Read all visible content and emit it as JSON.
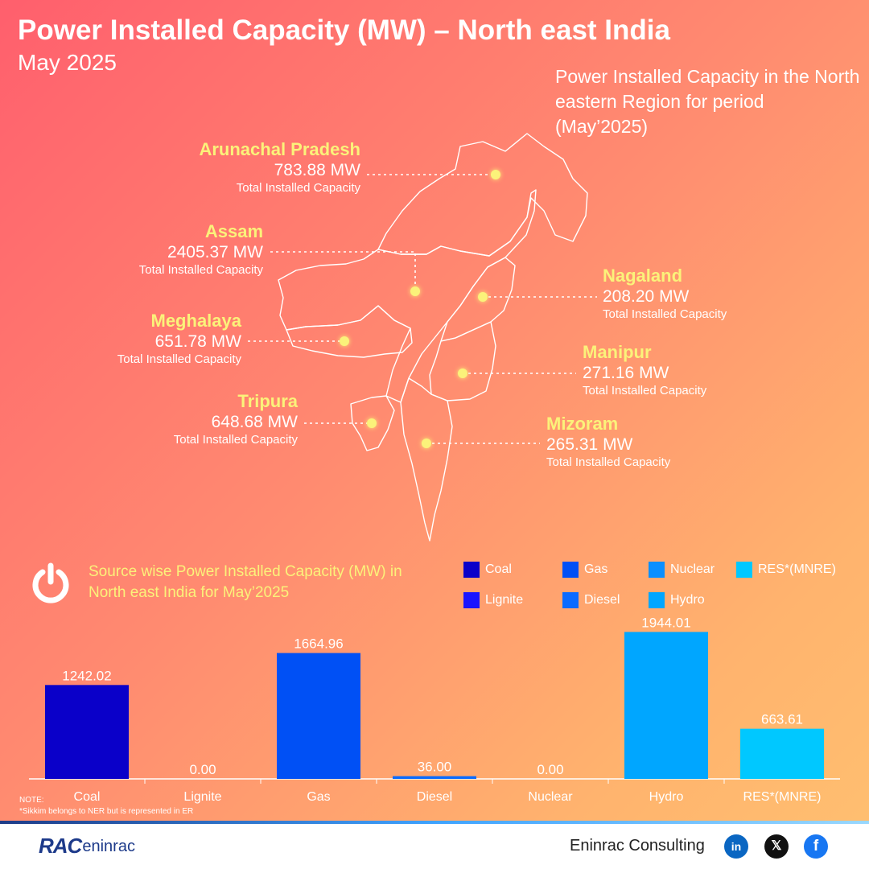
{
  "header": {
    "title": "Power Installed Capacity (MW) – North east India",
    "subtitle": "May 2025",
    "intro": "Power Installed Capacity in the North eastern Region for period (May’2025)"
  },
  "states": {
    "arunachal": {
      "name": "Arunachal Pradesh",
      "value": "783.88 MW",
      "caption": "Total Installed Capacity"
    },
    "assam": {
      "name": "Assam",
      "value": "2405.37 MW",
      "caption": "Total Installed Capacity"
    },
    "meghalaya": {
      "name": "Meghalaya",
      "value": "651.78 MW",
      "caption": "Total Installed Capacity"
    },
    "tripura": {
      "name": "Tripura",
      "value": "648.68 MW",
      "caption": "Total Installed Capacity"
    },
    "nagaland": {
      "name": "Nagaland",
      "value": "208.20 MW",
      "caption": "Total Installed Capacity"
    },
    "manipur": {
      "name": "Manipur",
      "value": "271.16 MW",
      "caption": "Total Installed Capacity"
    },
    "mizoram": {
      "name": "Mizoram",
      "value": "265.31 MW",
      "caption": "Total Installed Capacity"
    }
  },
  "source_section": {
    "title": "Source wise Power Installed Capacity (MW) in North east India for May’2025",
    "icon": "power-icon"
  },
  "legend": [
    {
      "label": "Coal",
      "color": "#0a00c9"
    },
    {
      "label": "Gas",
      "color": "#0050f5"
    },
    {
      "label": "Nuclear",
      "color": "#0a8fff"
    },
    {
      "label": "RES*(MNRE)",
      "color": "#00c8ff"
    },
    {
      "label": "Lignite",
      "color": "#1a14ff"
    },
    {
      "label": "Diesel",
      "color": "#0a6bff"
    },
    {
      "label": "Hydro",
      "color": "#00a6ff"
    }
  ],
  "chart_data": {
    "type": "bar",
    "categories": [
      "Coal",
      "Lignite",
      "Gas",
      "Diesel",
      "Nuclear",
      "Hydro",
      "RES*(MNRE)"
    ],
    "values": [
      1242.02,
      0.0,
      1664.96,
      36.0,
      0.0,
      1944.01,
      663.61
    ],
    "value_labels": [
      "1242.02",
      "0.00",
      "1664.96",
      "36.00",
      "0.00",
      "1944.01",
      "663.61"
    ],
    "colors": [
      "#0a00c9",
      "#1a14ff",
      "#0050f5",
      "#0a6bff",
      "#0a8fff",
      "#00a6ff",
      "#00c8ff"
    ],
    "ylim": [
      0,
      2000
    ],
    "grid": false
  },
  "note": {
    "heading": "NOTE:",
    "text": "*Sikkim belongs to NER but is represented in ER"
  },
  "footer": {
    "logo_mark": "RAC",
    "logo_text": "eninrac",
    "company": "Eninrac Consulting",
    "social": {
      "linkedin": "in",
      "x": "𝕏",
      "facebook": "f"
    }
  }
}
